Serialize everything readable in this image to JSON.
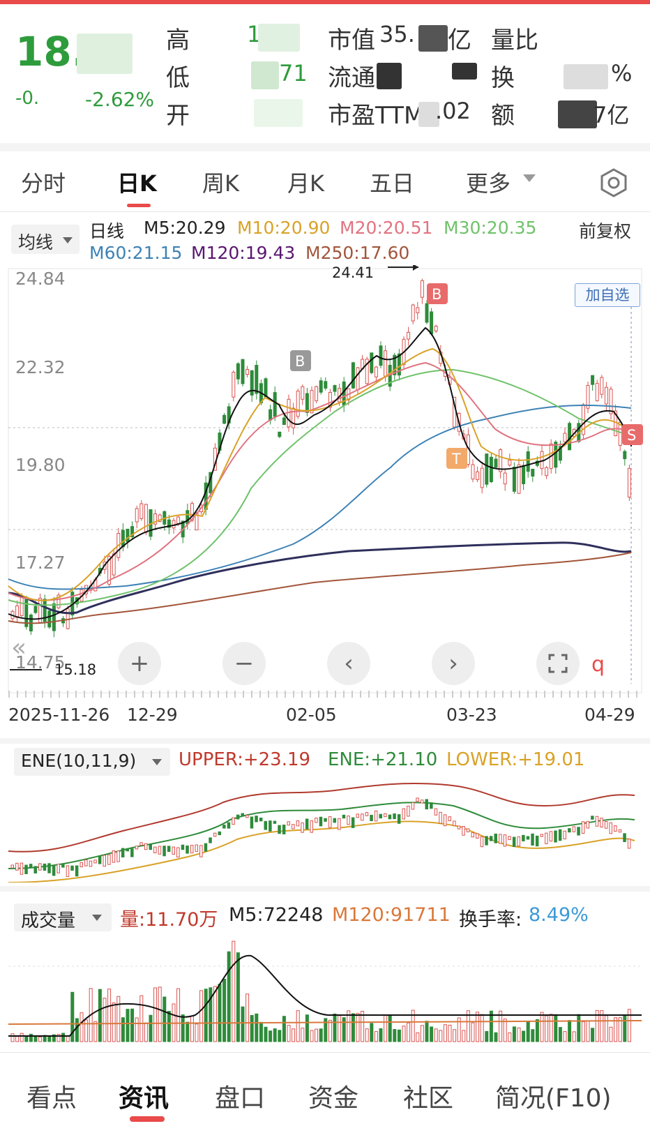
{
  "header": {
    "price": "18.",
    "change": "-0.",
    "change_pct": "-2.62%",
    "high_label": "高",
    "high_value": "19.",
    "low_label": "低",
    "low_value": "71",
    "open_label": "开",
    "mktcap_label": "市值",
    "mktcap_value": "35.",
    "mktcap_unit": "亿",
    "float_label": "流通",
    "pe_label": "市盈TTM",
    "pe_value": ".02",
    "volratio_label": "量比",
    "turnover_label": "换",
    "turnover_value": "%",
    "amount_label": "额",
    "amount_value": "7亿"
  },
  "tabs": [
    "分时",
    "日K",
    "周K",
    "月K",
    "五日",
    "更多"
  ],
  "ma": {
    "type_label": "均线",
    "line_label": "日线",
    "m5": "M5:20.29",
    "m10": "M10:20.90",
    "m20": "M20:20.51",
    "m30": "M30:20.35",
    "m60": "M60:21.15",
    "m120": "M120:19.43",
    "m250": "M250:17.60",
    "adjust": "前复权"
  },
  "chart": {
    "y_ticks": [
      "24.84",
      "22.32",
      "19.80",
      "17.27",
      "14.75"
    ],
    "high_mark": "24.41",
    "low_mark": "15.18",
    "add_watch": "加自选",
    "x_ticks": [
      "2025-11-26",
      "12-29",
      "02-05",
      "03-23",
      "04-29"
    ],
    "signal_b": "B",
    "signal_s": "S",
    "signal_t": "T"
  },
  "ene": {
    "label": "ENE(10,11,9)",
    "upper": "UPPER:+23.19",
    "mid": "ENE:+21.10",
    "lower": "LOWER:+19.01"
  },
  "volume": {
    "label": "成交量",
    "vol": "量:11.70万",
    "m5": "M5:72248",
    "m120": "M120:91711",
    "turnover_label": "换手率:",
    "turnover_value": "8.49%"
  },
  "bottom_nav": [
    "看点",
    "资讯",
    "盘口",
    "资金",
    "社区",
    "简况(F10)"
  ],
  "colors": {
    "up": "#d9534f",
    "down": "#2e8b3a",
    "accent": "#e94a4a"
  }
}
